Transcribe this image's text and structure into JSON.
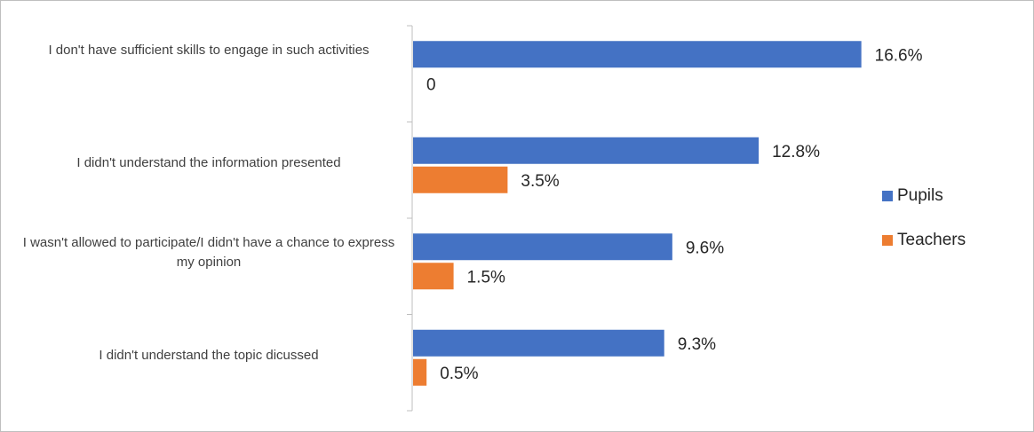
{
  "chart_data": {
    "type": "bar",
    "orientation": "horizontal",
    "categories": [
      "I don't have sufficient skills to engage in such activities",
      "I didn't understand the information presented",
      "I wasn't allowed to participate/I didn't have a chance to express my opinion",
      "I didn't understand the topic dicussed"
    ],
    "series": [
      {
        "name": "Pupils",
        "color": "#4472C4",
        "values": [
          16.6,
          12.8,
          9.6,
          9.3
        ],
        "labels": [
          "16.6%",
          "12.8%",
          "9.6%",
          "9.3%"
        ]
      },
      {
        "name": "Teachers",
        "color": "#ED7D31",
        "values": [
          0,
          3.5,
          1.5,
          0.5
        ],
        "labels": [
          "0",
          "3.5%",
          "1.5%",
          "0.5%"
        ]
      }
    ],
    "xlim": [
      0,
      18
    ],
    "grid": false,
    "legend_position": "right"
  }
}
